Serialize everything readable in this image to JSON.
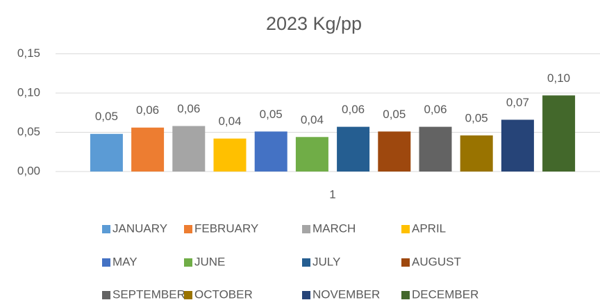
{
  "chart_data": {
    "type": "bar",
    "title": "2023 Kg/pp",
    "categories": [
      "1"
    ],
    "series": [
      {
        "name": "JANUARY",
        "color": "#5b9bd5",
        "values": [
          0.048
        ],
        "value_labels": [
          "0,05"
        ]
      },
      {
        "name": "FEBRUARY",
        "color": "#ed7d31",
        "values": [
          0.056
        ],
        "value_labels": [
          "0,06"
        ]
      },
      {
        "name": "MARCH",
        "color": "#a5a5a5",
        "values": [
          0.058
        ],
        "value_labels": [
          "0,06"
        ]
      },
      {
        "name": "APRIL",
        "color": "#ffc000",
        "values": [
          0.042
        ],
        "value_labels": [
          "0,04"
        ]
      },
      {
        "name": "MAY",
        "color": "#4472c4",
        "values": [
          0.051
        ],
        "value_labels": [
          "0,05"
        ]
      },
      {
        "name": "JUNE",
        "color": "#70ad47",
        "values": [
          0.044
        ],
        "value_labels": [
          "0,04"
        ]
      },
      {
        "name": "JULY",
        "color": "#255e91",
        "values": [
          0.057
        ],
        "value_labels": [
          "0,06"
        ]
      },
      {
        "name": "AUGUST",
        "color": "#9e480e",
        "values": [
          0.051
        ],
        "value_labels": [
          "0,05"
        ]
      },
      {
        "name": "SEPTEMBER",
        "color": "#636363",
        "values": [
          0.057
        ],
        "value_labels": [
          "0,06"
        ]
      },
      {
        "name": "OCTOBER",
        "color": "#997300",
        "values": [
          0.046
        ],
        "value_labels": [
          "0,05"
        ]
      },
      {
        "name": "NOVEMBER",
        "color": "#264478",
        "values": [
          0.066
        ],
        "value_labels": [
          "0,07"
        ]
      },
      {
        "name": "DECEMBER",
        "color": "#43682b",
        "values": [
          0.097
        ],
        "value_labels": [
          "0,10"
        ]
      }
    ],
    "ylim": [
      0,
      0.15
    ],
    "yticks": [
      {
        "value": 0,
        "label": "0,00"
      },
      {
        "value": 0.05,
        "label": "0,05"
      },
      {
        "value": 0.1,
        "label": "0,10"
      },
      {
        "value": 0.15,
        "label": "0,15"
      }
    ],
    "grid": true,
    "legend": "bottom"
  }
}
